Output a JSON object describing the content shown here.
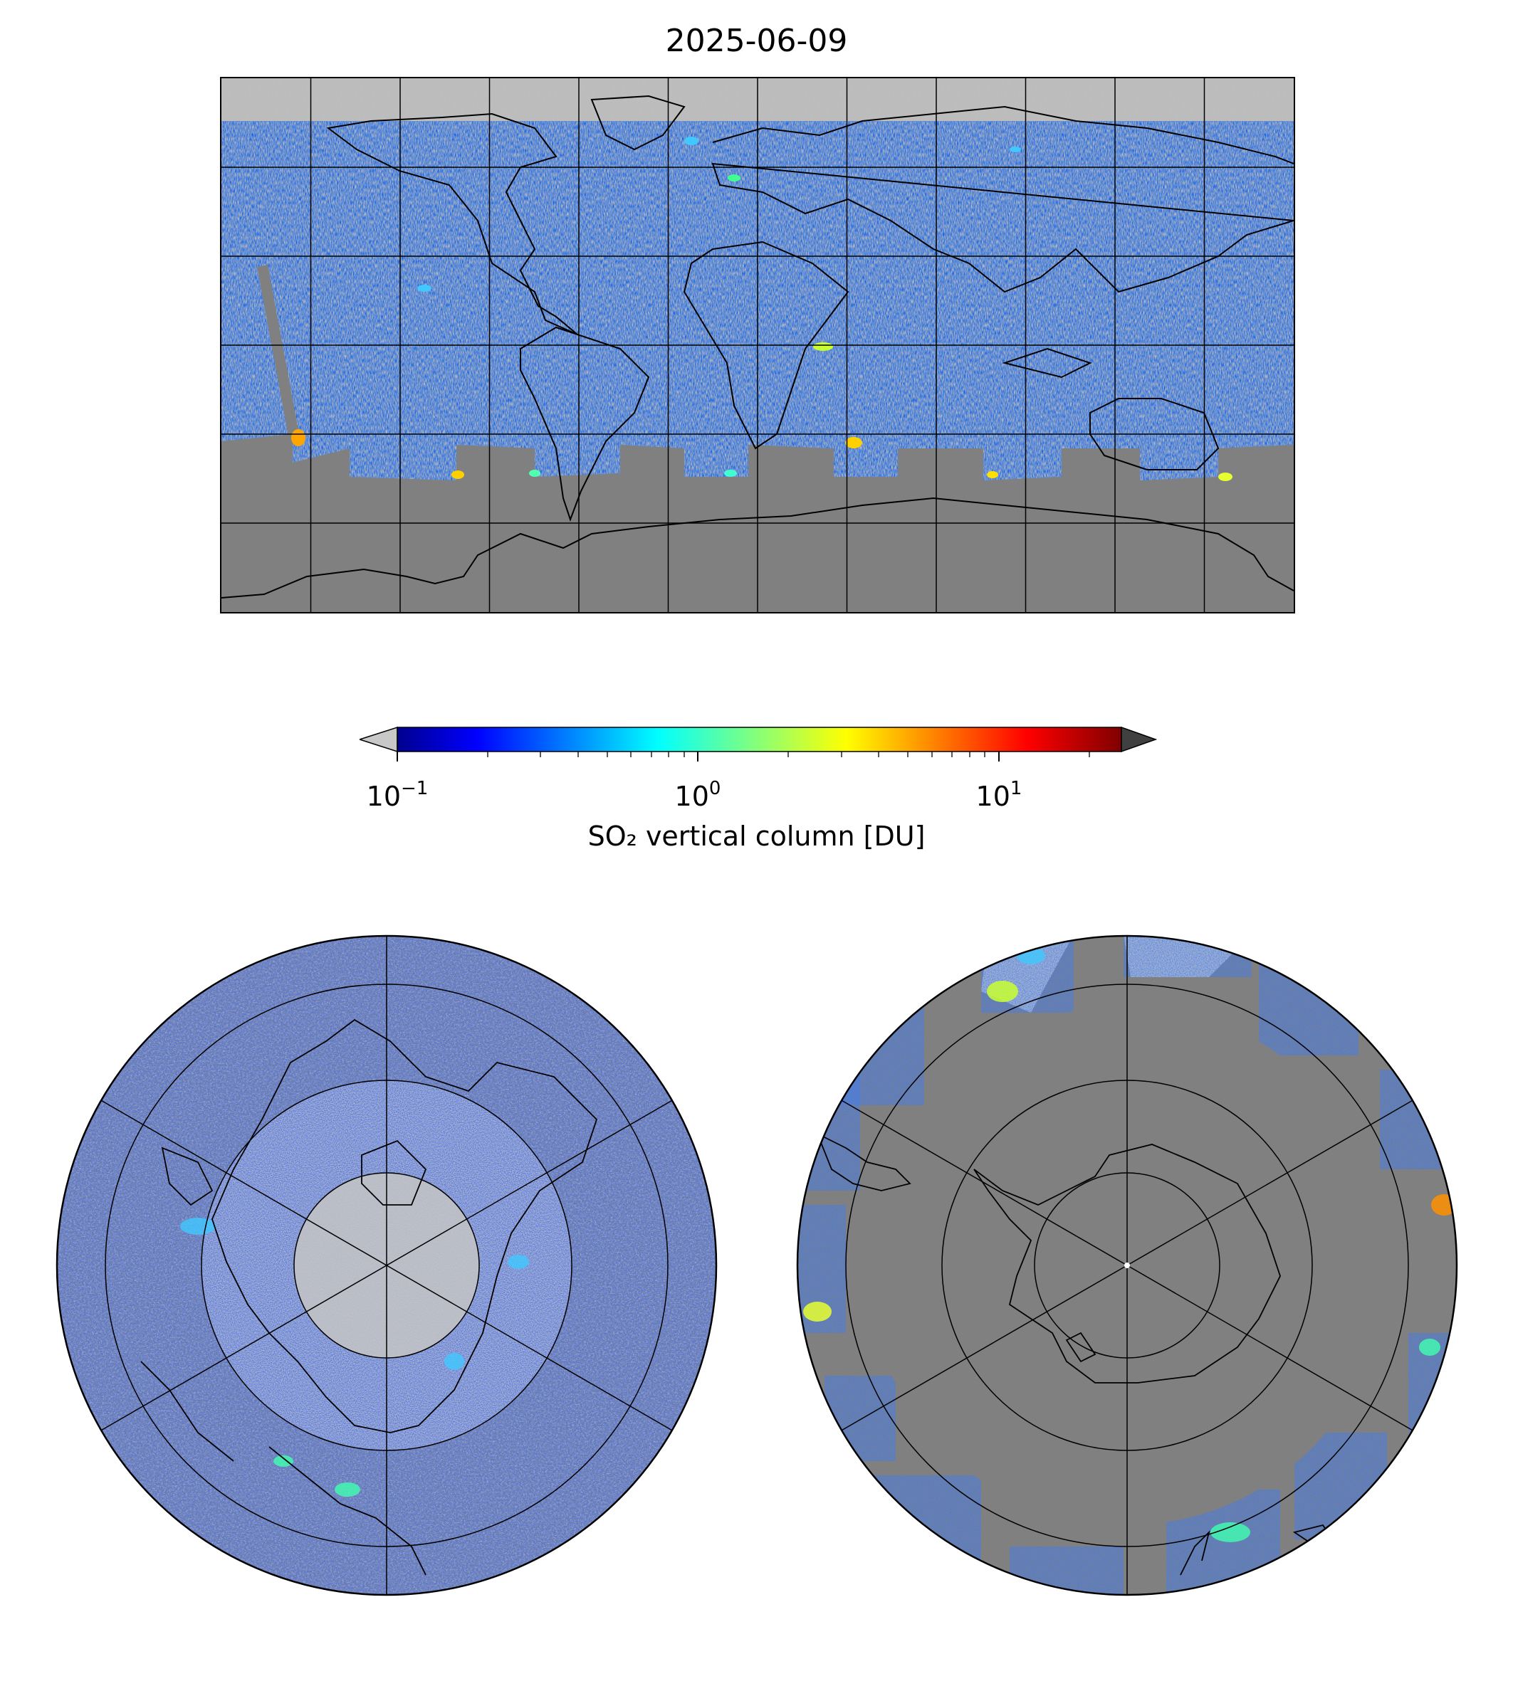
{
  "title": "2025-06-09",
  "colorbar": {
    "label": "SO₂ vertical column [DU]",
    "scale": "log",
    "range": [
      0.1,
      25
    ],
    "extend": "both",
    "under_color": "#c8c8c8",
    "over_color": "#404040",
    "colormap": "jet",
    "ticks": [
      {
        "base": "10",
        "exp": "−1",
        "value": 0.1
      },
      {
        "base": "10",
        "exp": "0",
        "value": 1
      },
      {
        "base": "10",
        "exp": "1",
        "value": 10
      }
    ]
  },
  "maps": {
    "global": {
      "projection": "plate carree",
      "gridlines": "30 degrees",
      "no_data_color": "#808080"
    },
    "north_polar": {
      "projection": "north polar stereographic",
      "gridlines": true
    },
    "south_polar": {
      "projection": "south polar stereographic",
      "gridlines": true
    }
  }
}
